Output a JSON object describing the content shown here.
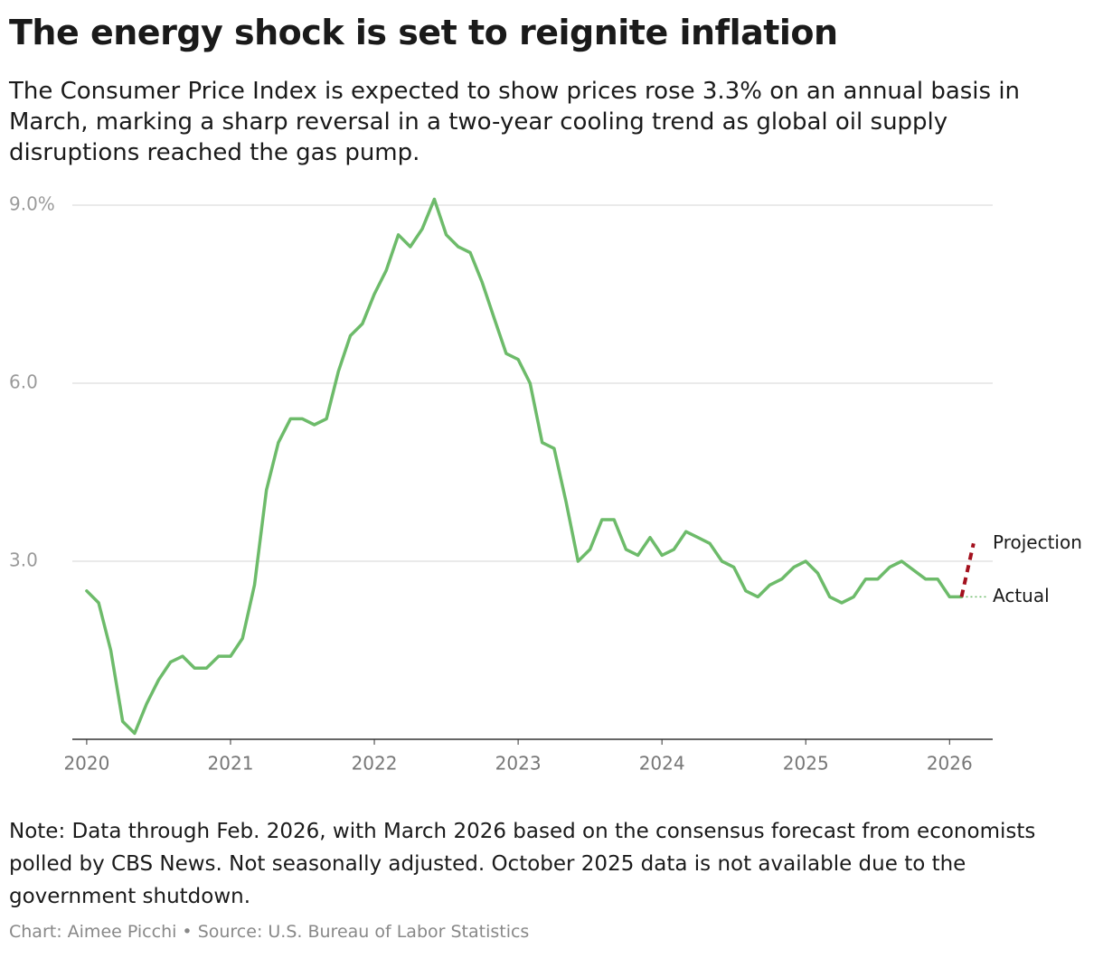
{
  "chart_data": {
    "type": "line",
    "title": "The energy shock is set to reignite inflation",
    "subtitle": "The Consumer Price Index is expected to show prices rose 3.3% on an annual basis in March, marking a sharp reversal in a two-year cooling trend as global oil supply disruptions reached the gas pump.",
    "note": "Note: Data through Feb. 2026, with March 2026 based on the consensus forecast from economists polled by CBS News. Not seasonally adjusted. October 2025 data is not available due to the government shutdown.",
    "credit": "Chart: Aimee Picchi",
    "source": "Source: U.S. Bureau of Labor Statistics",
    "xlim": [
      2019.9,
      2026.3
    ],
    "xticks": [
      2020,
      2021,
      2022,
      2023,
      2024,
      2025,
      2026
    ],
    "ylim": [
      0,
      9
    ],
    "yticks": [
      {
        "value": 3,
        "label": "3.0"
      },
      {
        "value": 6,
        "label": "6.0"
      },
      {
        "value": 9,
        "label": "9.0%"
      }
    ],
    "grid": true,
    "series": [
      {
        "name": "Actual",
        "color": "#6dbb6a",
        "dash": "solid",
        "x": [
          2020,
          2020.083,
          2020.167,
          2020.25,
          2020.333,
          2020.417,
          2020.5,
          2020.583,
          2020.667,
          2020.75,
          2020.833,
          2020.917,
          2021,
          2021.083,
          2021.167,
          2021.25,
          2021.333,
          2021.417,
          2021.5,
          2021.583,
          2021.667,
          2021.75,
          2021.833,
          2021.917,
          2022,
          2022.083,
          2022.167,
          2022.25,
          2022.333,
          2022.417,
          2022.5,
          2022.583,
          2022.667,
          2022.75,
          2022.833,
          2022.917,
          2023,
          2023.083,
          2023.167,
          2023.25,
          2023.333,
          2023.417,
          2023.5,
          2023.583,
          2023.667,
          2023.75,
          2023.833,
          2023.917,
          2024,
          2024.083,
          2024.167,
          2024.25,
          2024.333,
          2024.417,
          2024.5,
          2024.583,
          2024.667,
          2024.75,
          2024.833,
          2024.917,
          2025,
          2025.083,
          2025.167,
          2025.25,
          2025.333,
          2025.417,
          2025.5,
          2025.583,
          2025.667,
          2025.833,
          2025.917,
          2026,
          2026.083
        ],
        "values": [
          2.5,
          2.3,
          1.5,
          0.3,
          0.1,
          0.6,
          1.0,
          1.3,
          1.4,
          1.2,
          1.2,
          1.4,
          1.4,
          1.7,
          2.6,
          4.2,
          5.0,
          5.4,
          5.4,
          5.3,
          5.4,
          6.2,
          6.8,
          7.0,
          7.5,
          7.9,
          8.5,
          8.3,
          8.6,
          9.1,
          8.5,
          8.3,
          8.2,
          7.7,
          7.1,
          6.5,
          6.4,
          6.0,
          5.0,
          4.9,
          4.0,
          3.0,
          3.2,
          3.7,
          3.7,
          3.2,
          3.1,
          3.4,
          3.1,
          3.2,
          3.5,
          3.4,
          3.3,
          3.0,
          2.9,
          2.5,
          2.4,
          2.6,
          2.7,
          2.9,
          3.0,
          2.8,
          2.4,
          2.3,
          2.4,
          2.7,
          2.7,
          2.9,
          3.0,
          2.7,
          2.7,
          2.4,
          2.4
        ]
      },
      {
        "name": "Projection",
        "color": "#a3101d",
        "dash": "dashed",
        "x": [
          2026.083,
          2026.167
        ],
        "values": [
          2.4,
          3.3
        ]
      }
    ]
  }
}
